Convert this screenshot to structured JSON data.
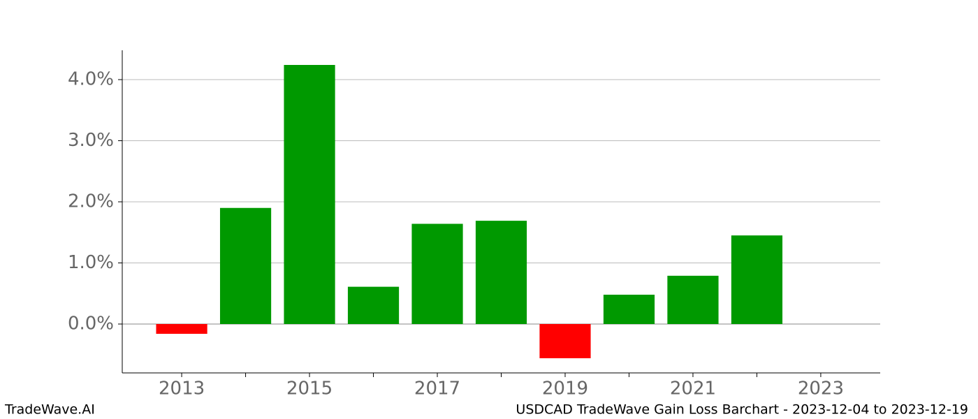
{
  "chart_data": {
    "type": "bar",
    "title": "USDCAD TradeWave Gain Loss Barchart - 2023-12-04 to 2023-12-19",
    "watermark": "TradeWave.AI",
    "x": [
      2013,
      2014,
      2015,
      2016,
      2017,
      2018,
      2019,
      2020,
      2021,
      2022
    ],
    "values": [
      -0.16,
      1.9,
      4.24,
      0.61,
      1.64,
      1.69,
      -0.56,
      0.48,
      0.79,
      1.45
    ],
    "positive_color": "#009900",
    "negative_color": "#ff0000",
    "bar_width": 0.8,
    "xlim": [
      2012.07,
      2023.93
    ],
    "xticks": [
      2013,
      2015,
      2017,
      2019,
      2021,
      2023
    ],
    "xticks_minor": [
      2014,
      2016,
      2018,
      2020,
      2022
    ],
    "ylim": [
      -0.8,
      4.48
    ],
    "yticks": [
      {
        "value": 0,
        "label": "0.0%"
      },
      {
        "value": 1,
        "label": "1.0%"
      },
      {
        "value": 2,
        "label": "2.0%"
      },
      {
        "value": 3,
        "label": "3.0%"
      },
      {
        "value": 4,
        "label": "4.0%"
      }
    ],
    "grid": true
  }
}
